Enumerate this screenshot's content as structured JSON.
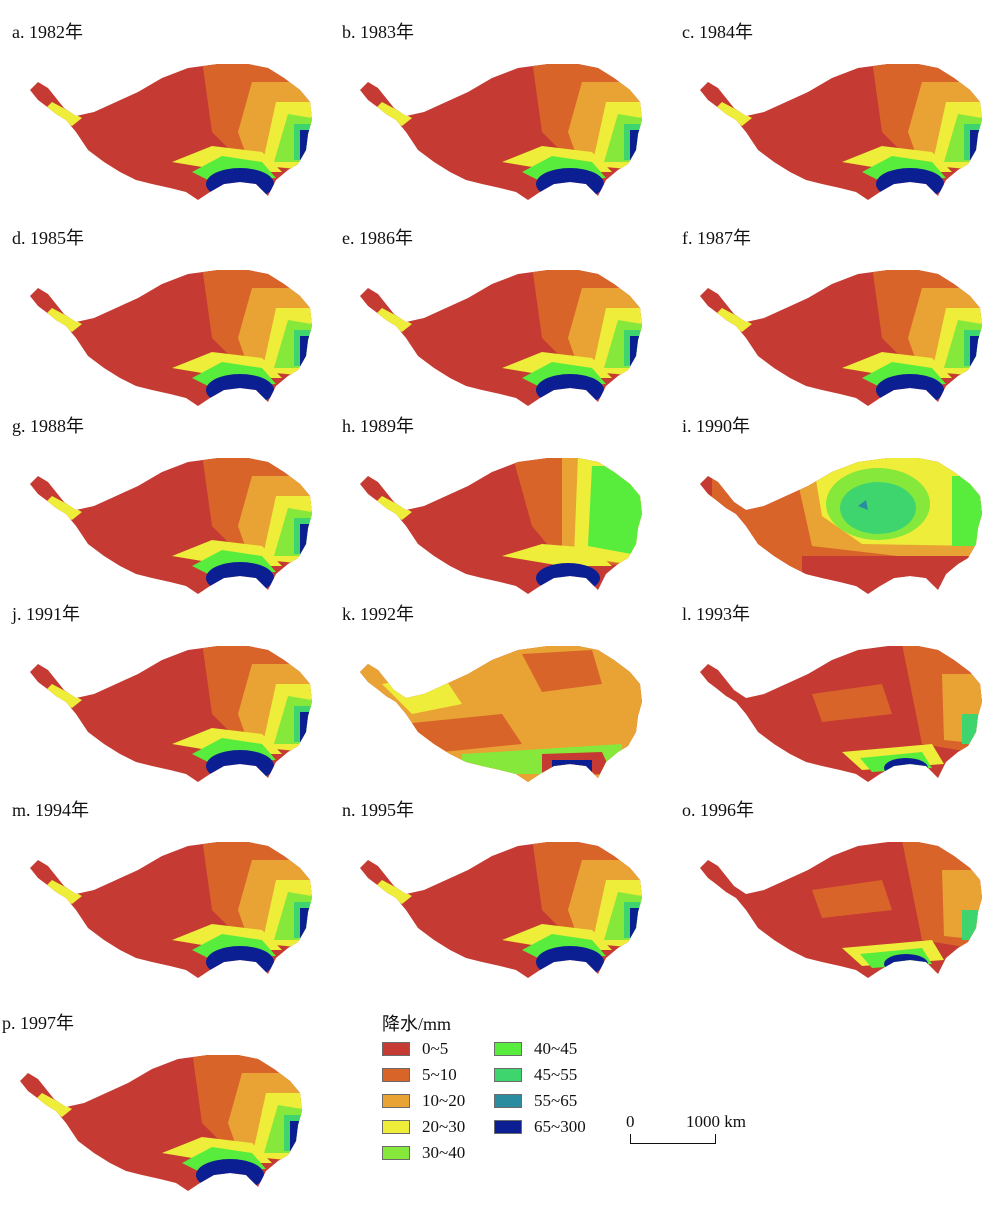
{
  "panels": [
    {
      "label": "a. 1982年",
      "pattern": "normal"
    },
    {
      "label": "b. 1983年",
      "pattern": "normal"
    },
    {
      "label": "c. 1984年",
      "pattern": "normal"
    },
    {
      "label": "d. 1985年",
      "pattern": "normal"
    },
    {
      "label": "e. 1986年",
      "pattern": "normal"
    },
    {
      "label": "f. 1987年",
      "pattern": "normal"
    },
    {
      "label": "g. 1988年",
      "pattern": "normal"
    },
    {
      "label": "h. 1989年",
      "pattern": "wet-east"
    },
    {
      "label": "i. 1990年",
      "pattern": "wet-center"
    },
    {
      "label": "j. 1991年",
      "pattern": "normal"
    },
    {
      "label": "k. 1992年",
      "pattern": "moderate"
    },
    {
      "label": "l. 1993年",
      "pattern": "dry"
    },
    {
      "label": "m. 1994年",
      "pattern": "normal"
    },
    {
      "label": "n. 1995年",
      "pattern": "normal"
    },
    {
      "label": "o. 1996年",
      "pattern": "dry"
    },
    {
      "label": "p. 1997年",
      "pattern": "normal"
    }
  ],
  "legend": {
    "title": "降水/mm",
    "items": [
      {
        "label": "0~5",
        "color": "#c53a32"
      },
      {
        "label": "5~10",
        "color": "#d9642a"
      },
      {
        "label": "10~20",
        "color": "#e9a334"
      },
      {
        "label": "20~30",
        "color": "#eded3a"
      },
      {
        "label": "30~40",
        "color": "#86e83a"
      },
      {
        "label": "40~45",
        "color": "#58ed3c"
      },
      {
        "label": "45~55",
        "color": "#3fd56e"
      },
      {
        "label": "55~65",
        "color": "#2a8c9e"
      },
      {
        "label": "65~300",
        "color": "#0c1f92"
      }
    ]
  },
  "scale_bar": {
    "zero": "0",
    "max": "1000 km"
  }
}
